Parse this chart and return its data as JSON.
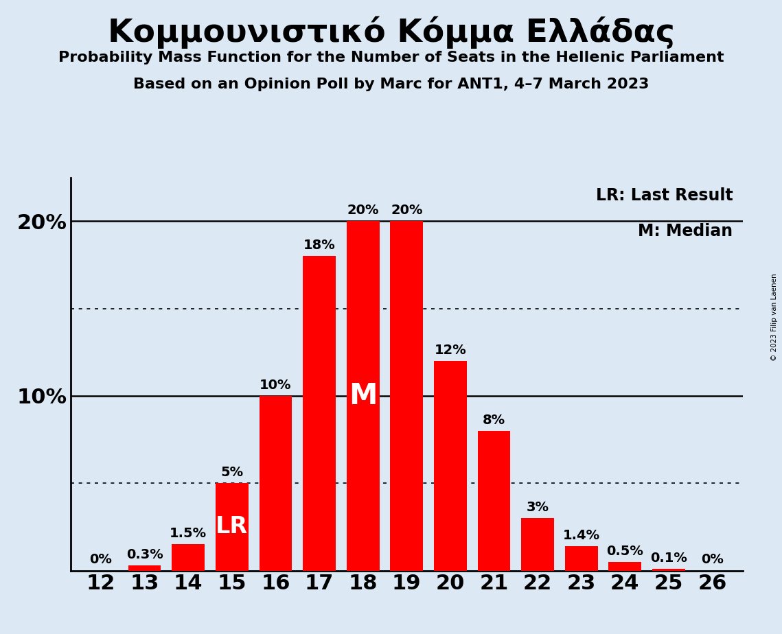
{
  "title": "Κομμουνιστικό Κόμμα Ελλάδας",
  "subtitle1": "Probability Mass Function for the Number of Seats in the Hellenic Parliament",
  "subtitle2": "Based on an Opinion Poll by Marc for ANT1, 4–7 March 2023",
  "copyright": "© 2023 Filip van Laenen",
  "seats": [
    12,
    13,
    14,
    15,
    16,
    17,
    18,
    19,
    20,
    21,
    22,
    23,
    24,
    25,
    26
  ],
  "probabilities": [
    0.0,
    0.3,
    1.5,
    5.0,
    10.0,
    18.0,
    20.0,
    20.0,
    12.0,
    8.0,
    3.0,
    1.4,
    0.5,
    0.1,
    0.0
  ],
  "bar_color": "#FF0000",
  "background_color": "#dce9f5",
  "lr_seat": 15,
  "median_seat": 18,
  "lr_label": "LR",
  "median_label": "M",
  "legend_lr": "LR: Last Result",
  "legend_m": "M: Median",
  "dotted_lines": [
    5.0,
    15.0
  ],
  "solid_lines": [
    10.0,
    20.0
  ],
  "ylim": [
    0,
    22.5
  ],
  "text_color": "#000000",
  "bar_label_color_outside": "#000000",
  "bar_label_color_inside": "#FFFFFF"
}
